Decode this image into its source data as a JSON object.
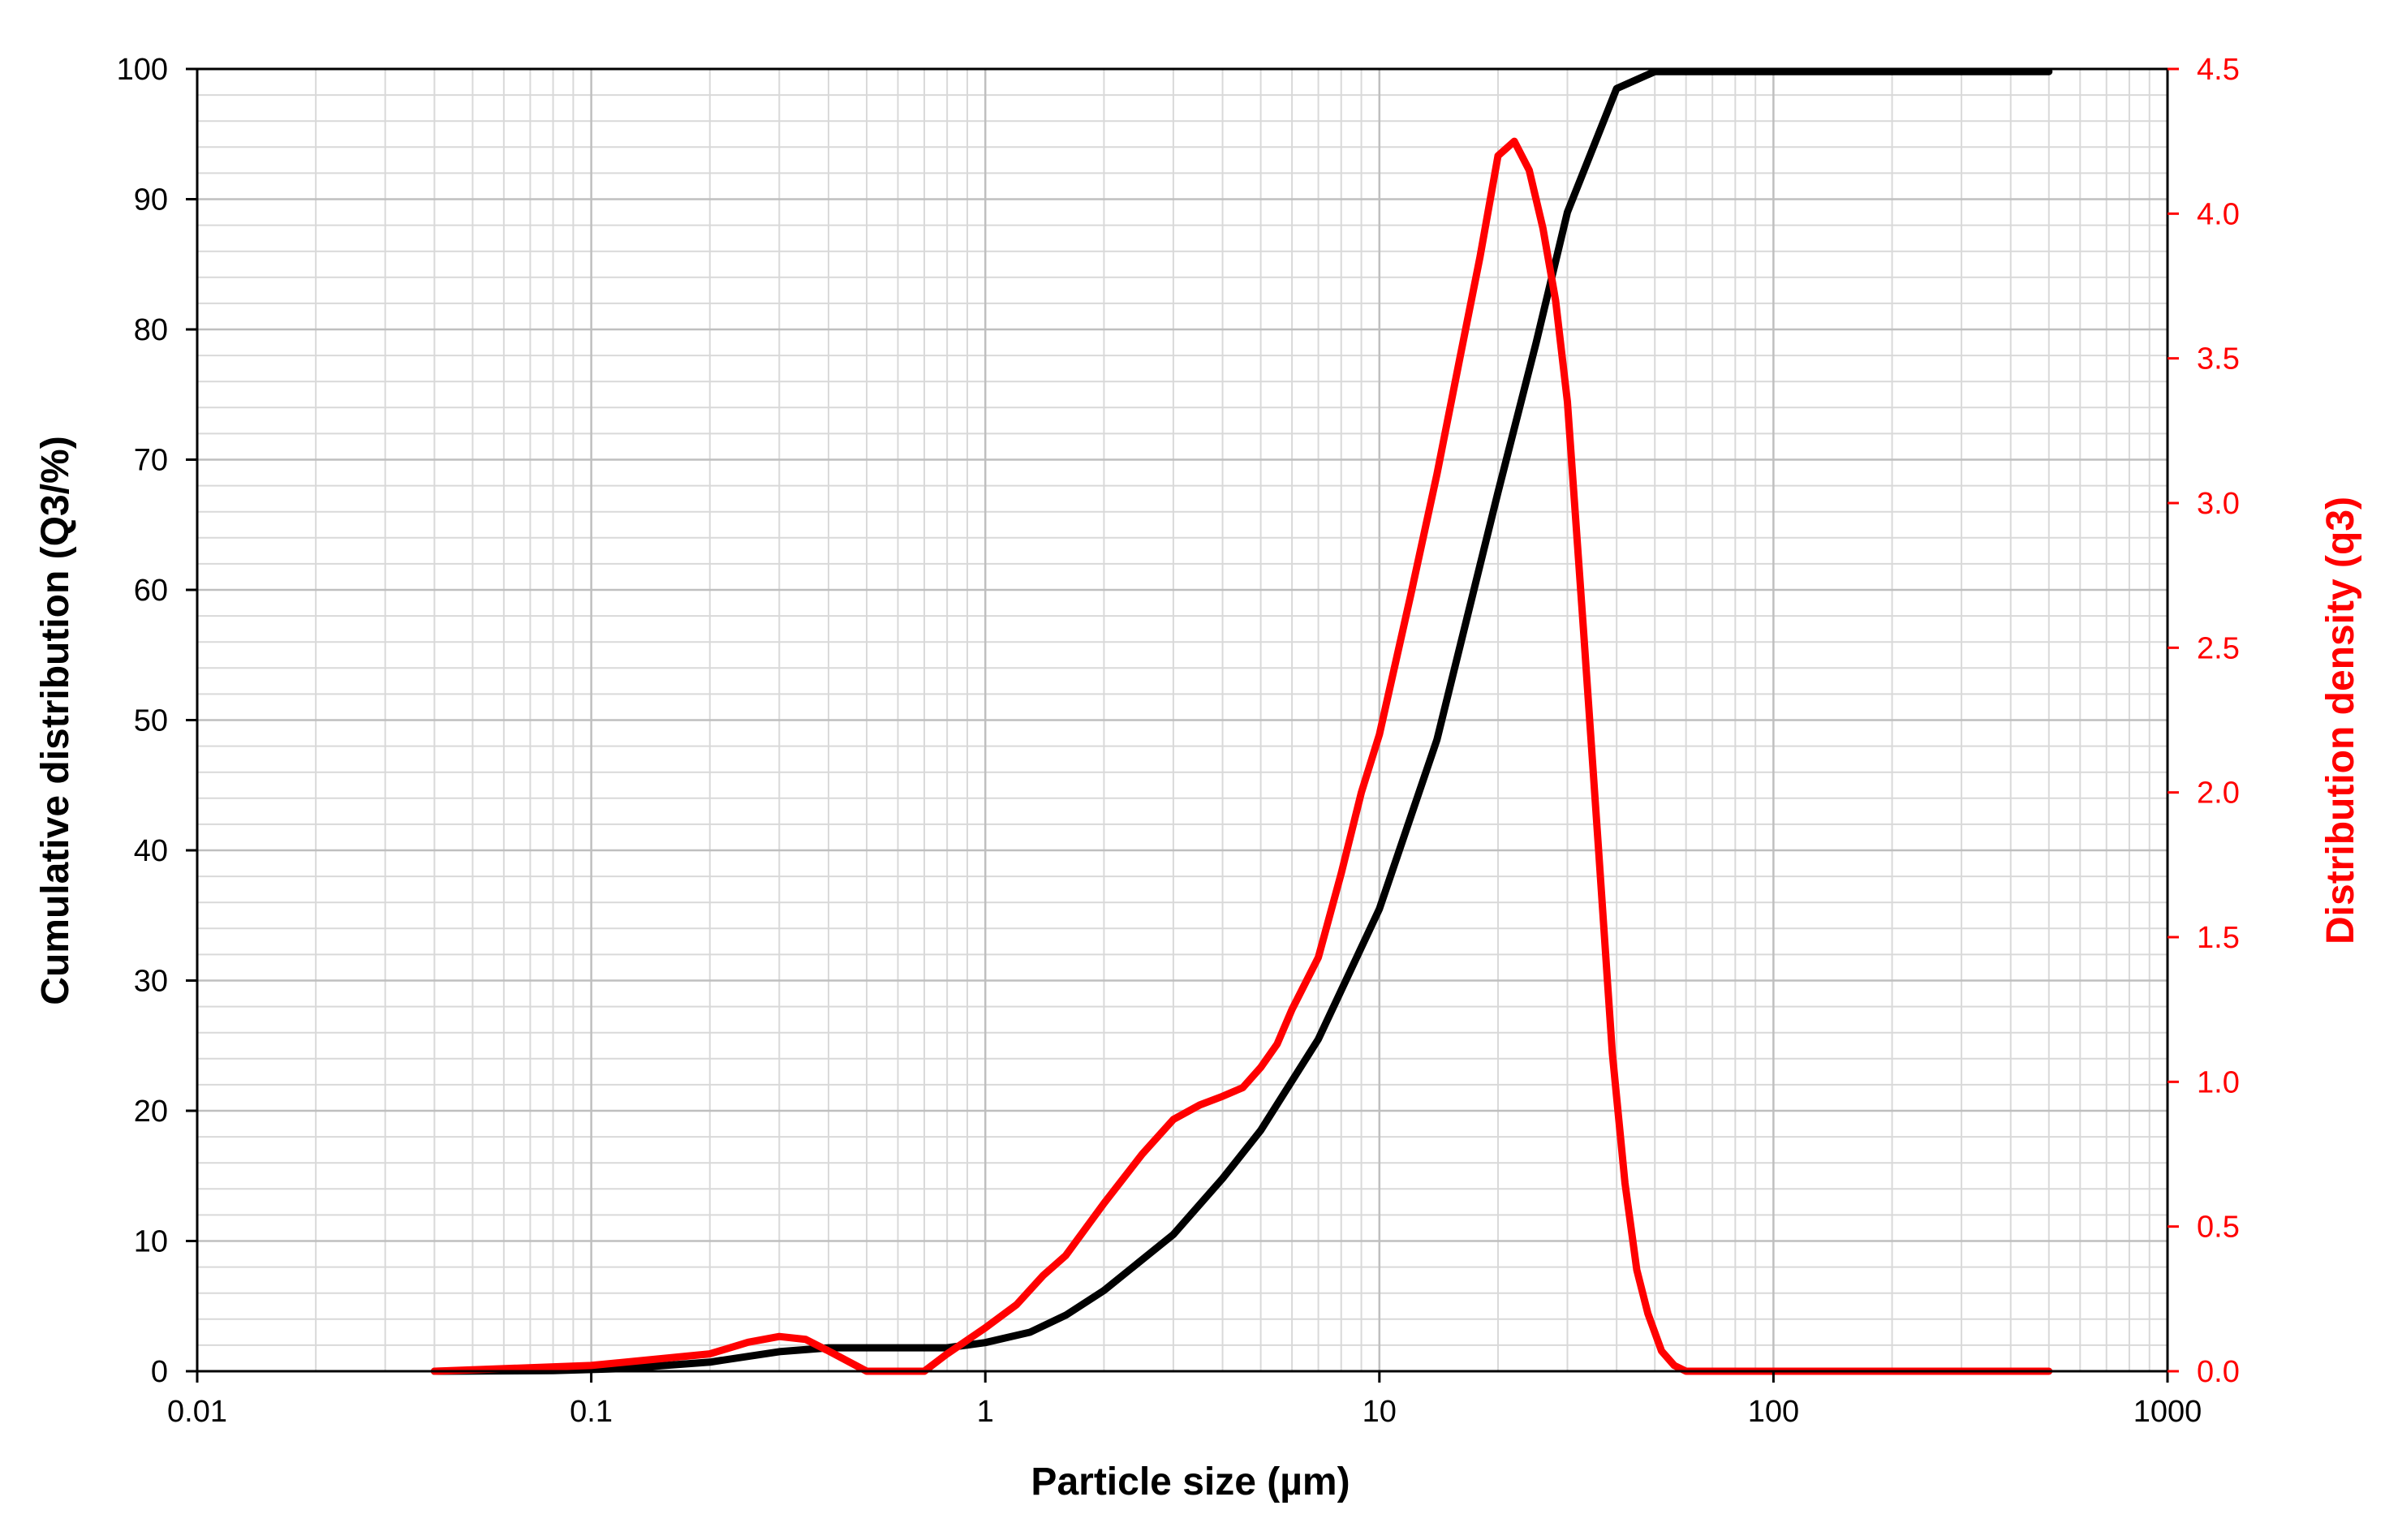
{
  "chart_data": {
    "type": "line",
    "title": "",
    "xlabel": "Particle size (µm)",
    "ylabel": "Cumulative distribution (Q3/%)",
    "y2label": "Distribution density (q3)",
    "x_scale": "log",
    "xlim": [
      0.01,
      1000
    ],
    "ylim": [
      0,
      100
    ],
    "y2lim": [
      0,
      4.5
    ],
    "grid": true,
    "legend": "none",
    "x_tick_labels": [
      "0.01",
      "0.1",
      "1",
      "10",
      "100",
      "1000"
    ],
    "y_tick_labels": [
      "0",
      "10",
      "20",
      "30",
      "40",
      "50",
      "60",
      "70",
      "80",
      "90",
      "100"
    ],
    "y2_tick_labels": [
      "0.0",
      "0.5",
      "1.0",
      "1.5",
      "2.0",
      "2.5",
      "3.0",
      "3.5",
      "4.0",
      "4.5"
    ],
    "colors": {
      "cumulative": "#000000",
      "density": "#ff0000",
      "grid": "#d9d9d9",
      "axis": "#000000"
    },
    "series": [
      {
        "axis": "left",
        "color": "#000000",
        "x": [
          0.04,
          0.08,
          0.12,
          0.2,
          0.3,
          0.4,
          0.6,
          0.8,
          1.0,
          1.3,
          1.6,
          2.0,
          3.0,
          4.0,
          5.0,
          7.0,
          10,
          14,
          20,
          25,
          30,
          40,
          50,
          60,
          100,
          500
        ],
        "values": [
          0,
          0.05,
          0.2,
          0.7,
          1.5,
          1.8,
          1.8,
          1.8,
          2.2,
          3.0,
          4.3,
          6.2,
          10.5,
          14.8,
          18.5,
          25.5,
          35.5,
          48.5,
          67.5,
          79.0,
          89.0,
          98.5,
          99.8,
          99.8,
          99.8,
          99.8
        ]
      },
      {
        "axis": "right",
        "color": "#ff0000",
        "x": [
          0.04,
          0.1,
          0.2,
          0.25,
          0.3,
          0.35,
          0.4,
          0.5,
          0.6,
          0.7,
          0.8,
          1.0,
          1.2,
          1.4,
          1.6,
          2.0,
          2.5,
          3.0,
          3.5,
          4.0,
          4.5,
          5.0,
          5.5,
          6.0,
          7.0,
          8.0,
          9.0,
          10,
          12,
          14,
          16,
          18,
          20,
          22,
          24,
          26,
          28,
          30,
          33,
          36,
          39,
          42,
          45,
          48,
          52,
          56,
          60,
          100,
          500
        ],
        "values": [
          0,
          0.02,
          0.06,
          0.1,
          0.12,
          0.11,
          0.07,
          0.0,
          0.0,
          0.0,
          0.06,
          0.15,
          0.23,
          0.33,
          0.4,
          0.58,
          0.75,
          0.87,
          0.92,
          0.95,
          0.98,
          1.05,
          1.13,
          1.25,
          1.43,
          1.72,
          2.0,
          2.2,
          2.68,
          3.1,
          3.5,
          3.85,
          4.2,
          4.25,
          4.15,
          3.95,
          3.7,
          3.35,
          2.55,
          1.8,
          1.1,
          0.65,
          0.35,
          0.2,
          0.07,
          0.02,
          0,
          0,
          0
        ]
      }
    ]
  }
}
